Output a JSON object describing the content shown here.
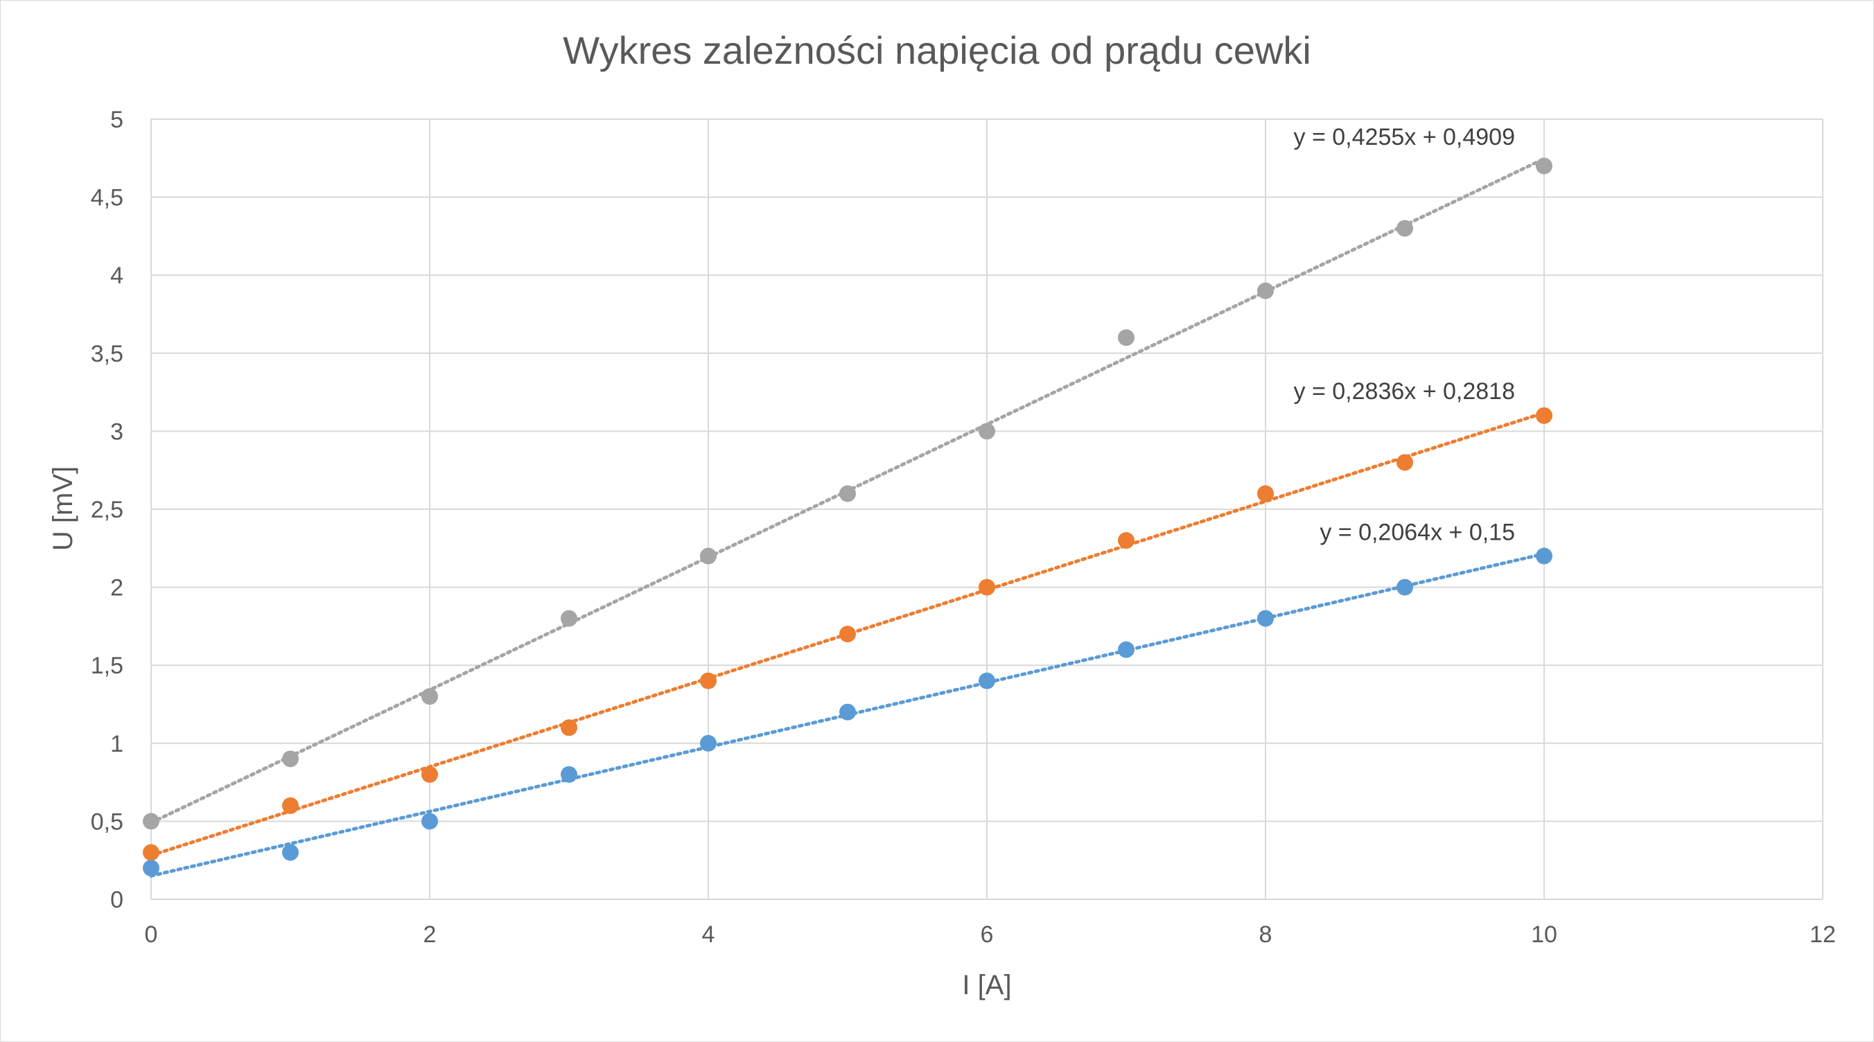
{
  "chart_data": {
    "type": "scatter",
    "title": "Wykres zależności napięcia od prądu cewki",
    "xlabel": "I [A]",
    "ylabel": "U [mV]",
    "xlim": [
      0,
      12
    ],
    "ylim": [
      0,
      5
    ],
    "x_ticks": [
      "0",
      "2",
      "4",
      "6",
      "8",
      "10",
      "12"
    ],
    "y_ticks": [
      "0",
      "0,5",
      "1",
      "1,5",
      "2",
      "2,5",
      "3",
      "3,5",
      "4",
      "4,5",
      "5"
    ],
    "grid": true,
    "legend": "none",
    "series": [
      {
        "color": "#a5a5a5",
        "x": [
          0,
          1,
          2,
          3,
          4,
          5,
          6,
          7,
          8,
          9,
          10
        ],
        "y": [
          0.5,
          0.9,
          1.3,
          1.8,
          2.2,
          2.6,
          3.0,
          3.6,
          3.9,
          4.3,
          4.7
        ],
        "trendline": {
          "slope": 0.4255,
          "intercept": 0.4909,
          "label": "y = 0,4255x + 0,4909"
        }
      },
      {
        "color": "#ed7d31",
        "x": [
          0,
          1,
          2,
          3,
          4,
          5,
          6,
          7,
          8,
          9,
          10
        ],
        "y": [
          0.3,
          0.6,
          0.8,
          1.1,
          1.4,
          1.7,
          2.0,
          2.3,
          2.6,
          2.8,
          3.1
        ],
        "trendline": {
          "slope": 0.2836,
          "intercept": 0.2818,
          "label": "y = 0,2836x + 0,2818"
        }
      },
      {
        "color": "#5b9bd5",
        "x": [
          0,
          1,
          2,
          3,
          4,
          5,
          6,
          7,
          8,
          9,
          10
        ],
        "y": [
          0.2,
          0.3,
          0.5,
          0.8,
          1.0,
          1.2,
          1.4,
          1.6,
          1.8,
          2.0,
          2.2
        ],
        "trendline": {
          "slope": 0.2064,
          "intercept": 0.15,
          "label": "y = 0,2064x + 0,15"
        }
      }
    ]
  }
}
